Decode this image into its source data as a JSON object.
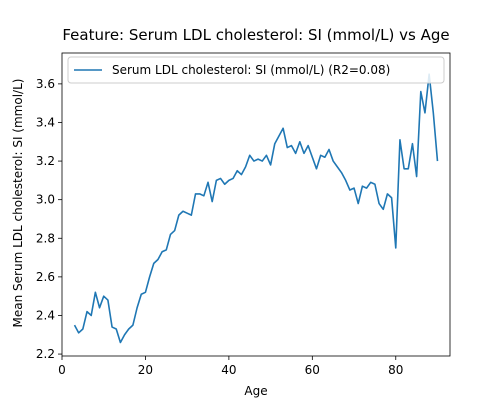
{
  "chart_data": {
    "type": "line",
    "title": "Feature: Serum LDL cholesterol:  SI (mmol/L) vs Age",
    "xlabel": "Age",
    "ylabel": "Mean Serum LDL cholesterol:  SI (mmol/L)",
    "xlim": [
      0,
      93
    ],
    "ylim": [
      2.19,
      3.76
    ],
    "xticks": [
      0,
      20,
      40,
      60,
      80
    ],
    "yticks": [
      2.2,
      2.4,
      2.6,
      2.8,
      3.0,
      3.2,
      3.4,
      3.6
    ],
    "ytick_labels": [
      "2.2",
      "2.4",
      "2.6",
      "2.8",
      "3.0",
      "3.2",
      "3.4",
      "3.6"
    ],
    "grid": false,
    "legend_position": "top-left",
    "series": [
      {
        "name": "Serum LDL cholesterol:  SI (mmol/L) (R2=0.08)",
        "color": "#1f77b4",
        "x": [
          3,
          4,
          5,
          6,
          7,
          8,
          9,
          10,
          11,
          12,
          13,
          14,
          15,
          16,
          17,
          18,
          19,
          20,
          21,
          22,
          23,
          24,
          25,
          26,
          27,
          28,
          29,
          30,
          31,
          32,
          33,
          34,
          35,
          36,
          37,
          38,
          39,
          40,
          41,
          42,
          43,
          44,
          45,
          46,
          47,
          48,
          49,
          50,
          51,
          52,
          53,
          54,
          55,
          56,
          57,
          58,
          59,
          60,
          61,
          62,
          63,
          64,
          65,
          66,
          67,
          68,
          69,
          70,
          71,
          72,
          73,
          74,
          75,
          76,
          77,
          78,
          79,
          80,
          81,
          82,
          83,
          84,
          85,
          86,
          87,
          88,
          89,
          90
        ],
        "y": [
          2.35,
          2.31,
          2.33,
          2.42,
          2.4,
          2.52,
          2.44,
          2.5,
          2.48,
          2.34,
          2.33,
          2.26,
          2.3,
          2.33,
          2.35,
          2.44,
          2.51,
          2.52,
          2.6,
          2.67,
          2.69,
          2.73,
          2.74,
          2.82,
          2.84,
          2.92,
          2.94,
          2.93,
          2.92,
          3.03,
          3.03,
          3.02,
          3.09,
          2.99,
          3.1,
          3.11,
          3.08,
          3.1,
          3.11,
          3.15,
          3.13,
          3.17,
          3.23,
          3.2,
          3.21,
          3.2,
          3.23,
          3.18,
          3.29,
          3.33,
          3.37,
          3.27,
          3.28,
          3.24,
          3.3,
          3.24,
          3.28,
          3.22,
          3.16,
          3.23,
          3.22,
          3.26,
          3.2,
          3.17,
          3.14,
          3.1,
          3.05,
          3.06,
          2.98,
          3.07,
          3.06,
          3.09,
          3.08,
          2.98,
          2.95,
          3.03,
          3.01,
          2.75,
          3.31,
          3.16,
          3.16,
          3.29,
          3.12,
          3.56,
          3.45,
          3.65,
          3.45,
          3.2
        ]
      }
    ]
  }
}
